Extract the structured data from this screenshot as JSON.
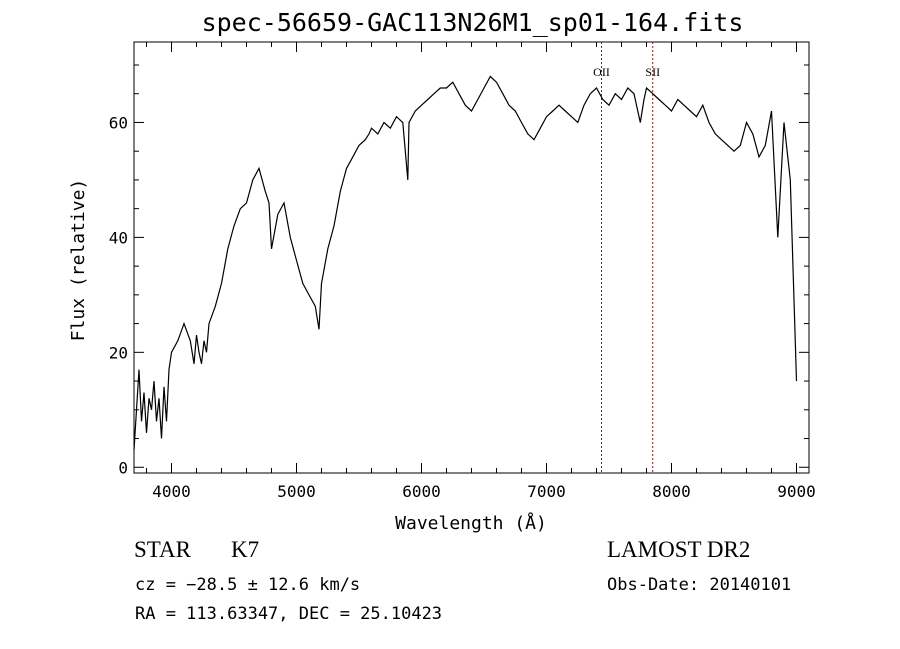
{
  "chart_data": {
    "type": "line",
    "title": "spec-56659-GAC113N26M1_sp01-164.fits",
    "xlabel": "Wavelength (Å)",
    "ylabel": "Flux (relative)",
    "xlim": [
      3700,
      9100
    ],
    "ylim": [
      -1,
      74
    ],
    "xticks": [
      4000,
      5000,
      6000,
      7000,
      8000,
      9000
    ],
    "yticks": [
      0,
      20,
      40,
      60
    ],
    "series": [
      {
        "x": [
          3700,
          3720,
          3740,
          3760,
          3780,
          3800,
          3820,
          3840,
          3860,
          3880,
          3900,
          3920,
          3940,
          3960,
          3980,
          4000,
          4050,
          4100,
          4150,
          4180,
          4200,
          4220,
          4240,
          4260,
          4280,
          4300,
          4350,
          4400,
          4450,
          4500,
          4550,
          4600,
          4650,
          4700,
          4750,
          4780,
          4800,
          4850,
          4900,
          4950,
          5000,
          5050,
          5100,
          5150,
          5180,
          5200,
          5250,
          5300,
          5350,
          5400,
          5450,
          5500,
          5550,
          5580,
          5600,
          5650,
          5700,
          5750,
          5800,
          5850,
          5890,
          5900,
          5950,
          6000,
          6050,
          6100,
          6150,
          6200,
          6250,
          6300,
          6350,
          6400,
          6450,
          6500,
          6550,
          6600,
          6650,
          6700,
          6750,
          6800,
          6850,
          6900,
          6950,
          7000,
          7050,
          7100,
          7150,
          7200,
          7250,
          7300,
          7350,
          7400,
          7450,
          7500,
          7550,
          7600,
          7650,
          7700,
          7750,
          7780,
          7800,
          7850,
          7900,
          7950,
          8000,
          8050,
          8100,
          8150,
          8200,
          8250,
          8300,
          8350,
          8400,
          8450,
          8500,
          8550,
          8600,
          8650,
          8700,
          8750,
          8800,
          8850,
          8900,
          8950,
          9000
        ],
        "y": [
          3,
          10,
          17,
          8,
          13,
          6,
          12,
          10,
          15,
          8,
          12,
          5,
          14,
          8,
          17,
          20,
          22,
          25,
          22,
          18,
          23,
          20,
          18,
          22,
          20,
          25,
          28,
          32,
          38,
          42,
          45,
          46,
          50,
          52,
          48,
          46,
          38,
          44,
          46,
          40,
          36,
          32,
          30,
          28,
          24,
          32,
          38,
          42,
          48,
          52,
          54,
          56,
          57,
          58,
          59,
          58,
          60,
          59,
          61,
          60,
          50,
          60,
          62,
          63,
          64,
          65,
          66,
          66,
          67,
          65,
          63,
          62,
          64,
          66,
          68,
          67,
          65,
          63,
          62,
          60,
          58,
          57,
          59,
          61,
          62,
          63,
          62,
          61,
          60,
          63,
          65,
          66,
          64,
          63,
          65,
          64,
          66,
          65,
          60,
          64,
          66,
          65,
          64,
          63,
          62,
          64,
          63,
          62,
          61,
          63,
          60,
          58,
          57,
          56,
          55,
          56,
          60,
          58,
          54,
          56,
          62,
          40,
          60,
          50,
          15
        ]
      }
    ],
    "annotations": [
      {
        "text": "OII",
        "x": 7440
      },
      {
        "text": "SII",
        "x": 7850
      }
    ],
    "colors": {
      "line": "#000000",
      "marker_lines": "#8b1a1a"
    }
  },
  "info": {
    "class_label": "STAR",
    "subclass": "K7",
    "cz": "cz = −28.5 ± 12.6 km/s",
    "radec": "RA = 113.63347, DEC =  25.10423",
    "survey": "LAMOST DR2",
    "obs_date": "Obs-Date: 20140101"
  }
}
